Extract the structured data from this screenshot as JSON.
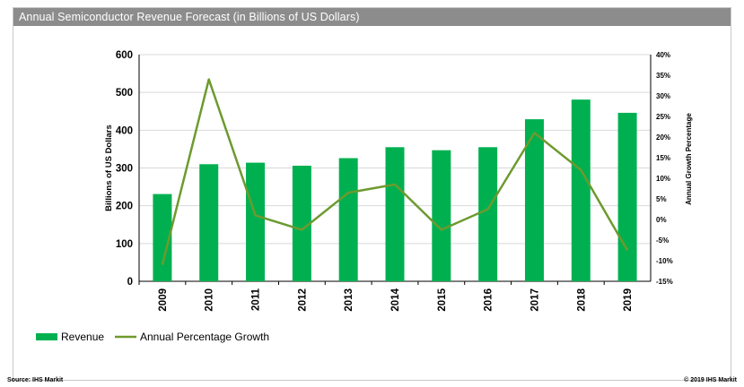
{
  "window": {
    "title": "Annual Semiconductor Revenue Forecast (in Billions of US Dollars)"
  },
  "footer": {
    "source": "Source: IHS Markit",
    "copyright": "© 2019 IHS Markit"
  },
  "colors": {
    "bar": "#00b050",
    "line": "#6d9a2f",
    "title_bg": "#8c8c8c",
    "grid": "#d9d9d9"
  },
  "chart_data": {
    "type": "bar",
    "title": "Annual Semiconductor Revenue Forecast (in Billions of US Dollars)",
    "categories": [
      "2009",
      "2010",
      "2011",
      "2012",
      "2013",
      "2014",
      "2015",
      "2016",
      "2017",
      "2018",
      "2019"
    ],
    "series": [
      {
        "name": "Revenue",
        "type": "bar",
        "axis": "left",
        "values": [
          231,
          310,
          314,
          306,
          326,
          355,
          347,
          355,
          429,
          481,
          446
        ]
      },
      {
        "name": "Annual Percentage Growth",
        "type": "line",
        "axis": "right",
        "values": [
          -11,
          34,
          1,
          -2.5,
          6.5,
          8.5,
          -2.5,
          2.5,
          21,
          12,
          -7.5
        ]
      }
    ],
    "ylabel": "Billions of US Dollars",
    "ylim": [
      0,
      600
    ],
    "yticks": [
      "0",
      "100",
      "200",
      "300",
      "400",
      "500",
      "600"
    ],
    "y2label": "Annual Growth Percentage",
    "y2lim": [
      -15,
      40
    ],
    "y2ticks": [
      "-15%",
      "-10%",
      "-5%",
      "0%",
      "5%",
      "10%",
      "15%",
      "20%",
      "25%",
      "30%",
      "35%",
      "40%"
    ],
    "grid": "horizontal",
    "legend": "bottom-left"
  }
}
